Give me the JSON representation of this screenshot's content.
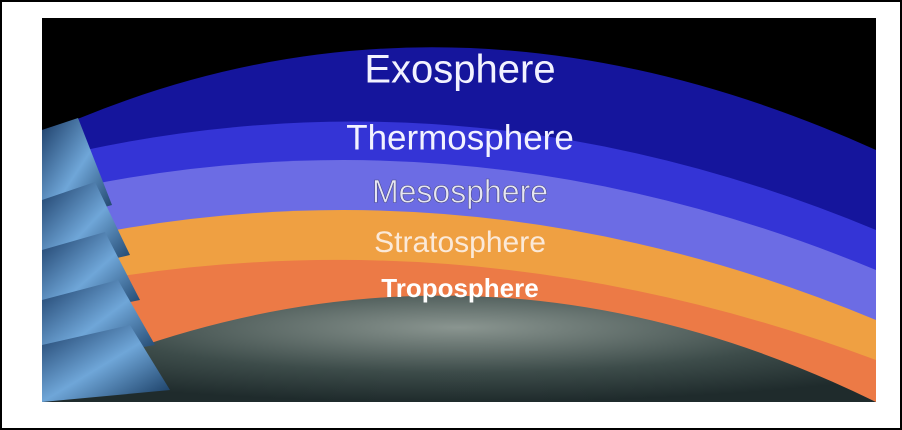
{
  "layers": [
    {
      "label": "Exosphere"
    },
    {
      "label": "Thermosphere"
    },
    {
      "label": "Mesosphere"
    },
    {
      "label": "Stratosphere"
    },
    {
      "label": "Troposphere"
    }
  ]
}
